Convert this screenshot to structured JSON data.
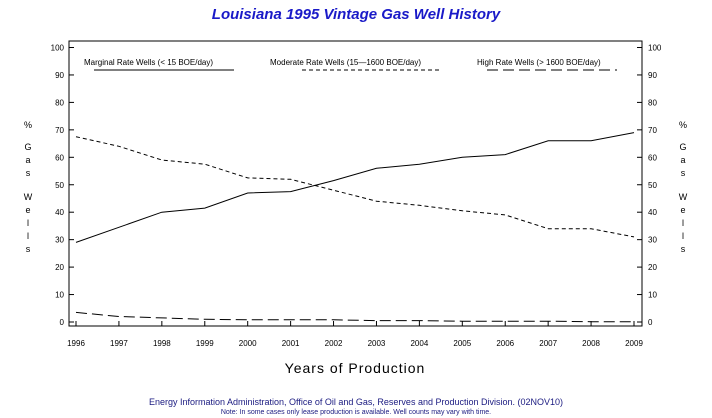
{
  "chart_data": {
    "type": "line",
    "title": "Louisiana 1995 Vintage Gas Well History",
    "xlabel": "Years of Production",
    "ylabel_letters": [
      "%",
      "G",
      "a",
      "s",
      "W",
      "e",
      "l",
      "l",
      "s"
    ],
    "x": [
      "1996",
      "1997",
      "1998",
      "1999",
      "2000",
      "2001",
      "2002",
      "2003",
      "2004",
      "2005",
      "2006",
      "2007",
      "2008",
      "2009"
    ],
    "ylim": [
      0,
      100
    ],
    "yticks": [
      "0",
      "10",
      "20",
      "30",
      "40",
      "50",
      "60",
      "70",
      "80",
      "90",
      "100"
    ],
    "grid": false,
    "series": [
      {
        "name": "Marginal Rate Wells (<  15 BOE/day)",
        "style": "solid",
        "values": [
          29,
          34.5,
          40,
          41.5,
          47,
          47.5,
          51.5,
          56,
          57.5,
          60,
          61,
          66,
          66,
          69
        ]
      },
      {
        "name": "Moderate Rate Wells (15—1600 BOE/day)",
        "style": "short-dash",
        "values": [
          67.5,
          64,
          59,
          57.5,
          52.5,
          52,
          48,
          44,
          42.5,
          40.5,
          39,
          34,
          34,
          31
        ]
      },
      {
        "name": "High Rate Wells (> 1600 BOE/day)",
        "style": "long-dash",
        "values": [
          3.5,
          2,
          1.5,
          1,
          0.8,
          0.8,
          0.8,
          0.5,
          0.5,
          0.3,
          0.3,
          0.3,
          0.1,
          0.1
        ]
      }
    ],
    "footer": "Energy Information Administration, Office of Oil and Gas, Reserves and Production Division. (02NOV10)",
    "note": "Note: In some cases only lease production is available. Well counts may vary with time."
  }
}
